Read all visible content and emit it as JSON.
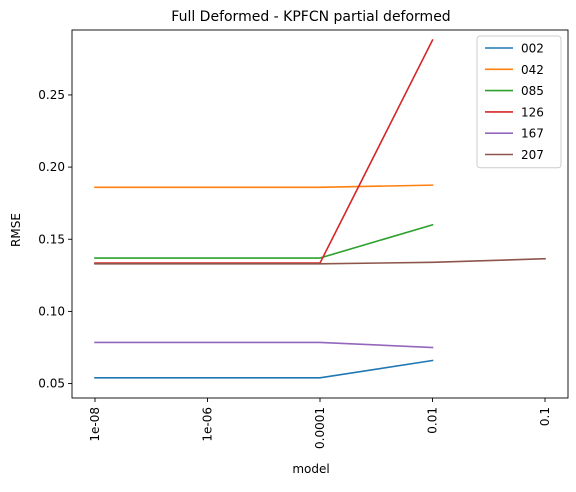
{
  "chart_data": {
    "type": "line",
    "title": "Full Deformed - KPFCN partial deformed",
    "xlabel": "model",
    "ylabel": "RMSE",
    "categories": [
      "1e-08",
      "1e-06",
      "0.0001",
      "0.01",
      "0.1"
    ],
    "ylim": [
      0.04,
      0.295
    ],
    "yticks": [
      0.05,
      0.1,
      0.15,
      0.2,
      0.25
    ],
    "ytick_labels": [
      "0.05",
      "0.10",
      "0.15",
      "0.20",
      "0.25"
    ],
    "grid": false,
    "legend_position": "top-right",
    "series": [
      {
        "name": "002",
        "color": "#1f77b4",
        "x": [
          "1e-08",
          "0.0001",
          "0.01"
        ],
        "values": [
          0.054,
          0.054,
          0.066
        ]
      },
      {
        "name": "042",
        "color": "#ff7f0e",
        "x": [
          "1e-08",
          "0.0001",
          "0.01"
        ],
        "values": [
          0.186,
          0.186,
          0.1875
        ]
      },
      {
        "name": "085",
        "color": "#2ca02c",
        "x": [
          "1e-08",
          "0.0001",
          "0.01"
        ],
        "values": [
          0.137,
          0.137,
          0.16
        ]
      },
      {
        "name": "126",
        "color": "#d62728",
        "x": [
          "1e-08",
          "0.0001",
          "0.01"
        ],
        "values": [
          0.1335,
          0.1335,
          0.288
        ]
      },
      {
        "name": "167",
        "color": "#9467bd",
        "x": [
          "1e-08",
          "0.0001",
          "0.01"
        ],
        "values": [
          0.0785,
          0.0785,
          0.075
        ]
      },
      {
        "name": "207",
        "color": "#8c564b",
        "x": [
          "1e-08",
          "0.0001",
          "0.01",
          "0.1"
        ],
        "values": [
          0.133,
          0.133,
          0.134,
          0.1365
        ]
      }
    ]
  }
}
